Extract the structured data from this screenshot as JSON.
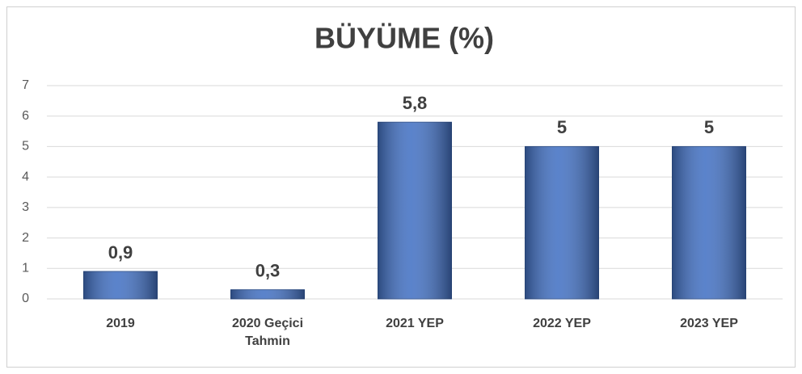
{
  "chart_data": {
    "type": "bar",
    "title": "BÜYÜME (%)",
    "categories": [
      "2019",
      "2020 Geçici Tahmin",
      "2021 YEP",
      "2022 YEP",
      "2023 YEP"
    ],
    "values": [
      0.9,
      0.3,
      5.8,
      5,
      5
    ],
    "value_labels": [
      "0,9",
      "0,3",
      "5,8",
      "5",
      "5"
    ],
    "color": "#4472c4",
    "ylim": [
      0,
      7
    ],
    "yticks": [
      0,
      1,
      2,
      3,
      4,
      5,
      6,
      7
    ],
    "grid": true
  }
}
